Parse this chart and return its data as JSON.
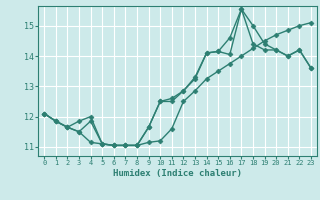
{
  "xlabel": "Humidex (Indice chaleur)",
  "background_color": "#cdeaea",
  "grid_color": "#ffffff",
  "line_color": "#2d7f72",
  "xlim": [
    -0.5,
    23.5
  ],
  "ylim": [
    10.7,
    15.65
  ],
  "yticks": [
    11,
    12,
    13,
    14,
    15
  ],
  "xticks": [
    0,
    1,
    2,
    3,
    4,
    5,
    6,
    7,
    8,
    9,
    10,
    11,
    12,
    13,
    14,
    15,
    16,
    17,
    18,
    19,
    20,
    21,
    22,
    23
  ],
  "line1_x": [
    0,
    1,
    2,
    3,
    4,
    5,
    6,
    7,
    8,
    9,
    10,
    11,
    12,
    13,
    14,
    15,
    16,
    17,
    18,
    19,
    20,
    21,
    22,
    23
  ],
  "line1_y": [
    12.1,
    11.85,
    11.65,
    11.5,
    11.15,
    11.1,
    11.05,
    11.05,
    11.05,
    11.15,
    11.2,
    11.6,
    12.5,
    12.85,
    13.25,
    13.5,
    13.75,
    14.0,
    14.25,
    14.5,
    14.7,
    14.85,
    15.0,
    15.1
  ],
  "line2_x": [
    0,
    1,
    2,
    3,
    4,
    5,
    6,
    7,
    8,
    9,
    10,
    11,
    12,
    13,
    14,
    15,
    16,
    17,
    18,
    19,
    20,
    21,
    22,
    23
  ],
  "line2_y": [
    12.1,
    11.85,
    11.65,
    11.85,
    12.0,
    11.1,
    11.05,
    11.05,
    11.05,
    11.65,
    12.5,
    12.6,
    12.85,
    13.25,
    14.1,
    14.15,
    14.05,
    15.55,
    15.0,
    14.4,
    14.2,
    14.0,
    14.2,
    13.6
  ],
  "line3_x": [
    0,
    1,
    2,
    3,
    4,
    5,
    6,
    7,
    8,
    9,
    10,
    11,
    12,
    13,
    14,
    15,
    16,
    17,
    18,
    19,
    20,
    21,
    22,
    23
  ],
  "line3_y": [
    12.1,
    11.85,
    11.65,
    11.5,
    11.85,
    11.1,
    11.05,
    11.05,
    11.05,
    11.65,
    12.5,
    12.5,
    12.85,
    13.3,
    14.1,
    14.15,
    14.6,
    15.55,
    14.4,
    14.2,
    14.2,
    14.0,
    14.2,
    13.6
  ],
  "marker": "D",
  "markersize": 2.5,
  "linewidth": 1.0
}
